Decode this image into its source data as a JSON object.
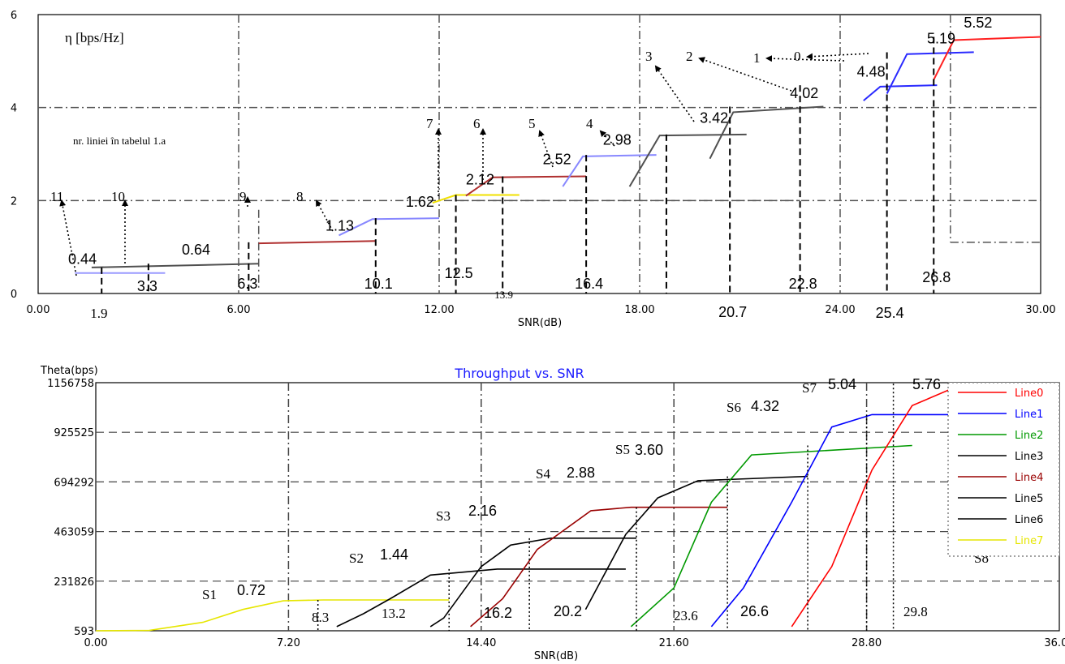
{
  "chart_data": [
    {
      "type": "line",
      "ylabel": "η [bps/Hz]",
      "xlabel": "SNR(dB)",
      "xlim": [
        0,
        30
      ],
      "ylim": [
        0,
        6
      ],
      "x_ticks": [
        "0.00",
        "6.00",
        "12.00",
        "18.00",
        "24.00",
        "30.00"
      ],
      "y_ticks": [
        "0",
        "2",
        "4",
        "6"
      ],
      "note": "nr. liniei în tabelul 1.a",
      "colors": {
        "gray": "#606060",
        "blue": "#8080ff",
        "red": "#b03030",
        "yellow": "#f0e000",
        "vivid_red": "#ff2020",
        "vivid_blue": "#2a2aff"
      },
      "series": [
        {
          "values_x": [
            1.1,
            3.8
          ],
          "values_y": [
            0.44,
            0.44
          ],
          "color": "#9a9aff"
        },
        {
          "values_x": [
            1.6,
            6.6
          ],
          "values_y": [
            0.56,
            0.64
          ],
          "color": "#505050"
        },
        {
          "values_x": [
            6.6,
            10.1
          ],
          "values_y": [
            1.08,
            1.13
          ],
          "color": "#b03030"
        },
        {
          "values_x": [
            9.0,
            10.0,
            12.0
          ],
          "values_y": [
            1.25,
            1.6,
            1.62
          ],
          "color": "#8888ff"
        },
        {
          "values_x": [
            11.8,
            12.5,
            14.4
          ],
          "values_y": [
            1.95,
            2.12,
            2.12
          ],
          "color": "#f0e000"
        },
        {
          "values_x": [
            12.8,
            13.6,
            16.4
          ],
          "values_y": [
            2.1,
            2.5,
            2.52
          ],
          "color": "#b03030"
        },
        {
          "values_x": [
            15.7,
            16.3,
            18.5
          ],
          "values_y": [
            2.3,
            2.95,
            2.98
          ],
          "color": "#8888ff"
        },
        {
          "values_x": [
            17.7,
            18.6,
            21.2
          ],
          "values_y": [
            2.3,
            3.4,
            3.42
          ],
          "color": "#505050"
        },
        {
          "values_x": [
            20.1,
            20.8,
            23.5
          ],
          "values_y": [
            2.9,
            3.9,
            4.02
          ],
          "color": "#505050"
        },
        {
          "values_x": [
            24.7,
            25.2,
            26.9
          ],
          "values_y": [
            4.15,
            4.45,
            4.48
          ],
          "color": "#2a2aff"
        },
        {
          "values_x": [
            25.4,
            26.0,
            28.0
          ],
          "values_y": [
            4.3,
            5.15,
            5.19
          ],
          "color": "#2a2aff"
        },
        {
          "values_x": [
            26.8,
            27.4,
            30.0
          ],
          "values_y": [
            4.6,
            5.45,
            5.52
          ],
          "color": "#ff2020"
        }
      ],
      "efficiency_labels": [
        {
          "text": "0.44",
          "x": 0.9,
          "y": 0.64
        },
        {
          "text": "0.64",
          "x": 4.3,
          "y": 0.84
        },
        {
          "text": "1.13",
          "x": 8.6,
          "y": 1.35
        },
        {
          "text": "1.62",
          "x": 11.0,
          "y": 1.87
        },
        {
          "text": "2.12",
          "x": 12.8,
          "y": 2.35
        },
        {
          "text": "2.52",
          "x": 15.1,
          "y": 2.78
        },
        {
          "text": "2.98",
          "x": 16.9,
          "y": 3.2
        },
        {
          "text": "3.42",
          "x": 19.8,
          "y": 3.67
        },
        {
          "text": "4.02",
          "x": 22.5,
          "y": 4.2
        },
        {
          "text": "4.48",
          "x": 24.5,
          "y": 4.67
        },
        {
          "text": "5.19",
          "x": 26.6,
          "y": 5.38
        },
        {
          "text": "5.52",
          "x": 27.7,
          "y": 5.72
        }
      ],
      "threshold_labels": [
        "1.9",
        "3.3",
        "6.3",
        "10.1",
        "12.5",
        "13.9",
        "16.4",
        "20.7",
        "22.8",
        "25.4",
        "26.8"
      ],
      "line_numbers": [
        "0",
        "1",
        "2",
        "3",
        "4",
        "5",
        "6",
        "7",
        "8",
        "9",
        "10",
        "11"
      ]
    },
    {
      "type": "line",
      "title": "Throughput vs. SNR",
      "ylabel": "Theta(bps)",
      "xlabel": "SNR(dB)",
      "xlim": [
        0,
        36
      ],
      "ylim": [
        593,
        1156758
      ],
      "x_ticks": [
        "0.00",
        "7.20",
        "14.40",
        "21.60",
        "28.80",
        "36.00"
      ],
      "y_ticks": [
        "593",
        "231826",
        "463059",
        "694292",
        "925525",
        "1156758"
      ],
      "legend": [
        "Line0",
        "Line1",
        "Line2",
        "Line3",
        "Line4",
        "Line5",
        "Line6",
        "Line7"
      ],
      "legend_colors": [
        "#ff0000",
        "#0000ff",
        "#009900",
        "#000000",
        "#990000",
        "#000000",
        "#000000",
        "#e6e600"
      ],
      "series": [
        {
          "name": "Line7",
          "x": [
            0.0,
            2.0,
            4.0,
            5.5,
            7.0,
            8.5,
            12.0,
            13.2
          ],
          "y": [
            593,
            2000,
            40000,
            100000,
            140000,
            144000,
            144000,
            144000
          ]
        },
        {
          "name": "Line6",
          "x": [
            9.0,
            10.0,
            11.0,
            12.5,
            15.0,
            16.2,
            19.8
          ],
          "y": [
            20000,
            80000,
            150000,
            260000,
            288000,
            288000,
            288000
          ]
        },
        {
          "name": "Line5",
          "x": [
            12.5,
            13.0,
            14.4,
            15.5,
            17.0,
            19.5,
            20.2
          ],
          "y": [
            20000,
            60000,
            300000,
            400000,
            432000,
            432000,
            432000
          ]
        },
        {
          "name": "Line4",
          "x": [
            14.0,
            15.2,
            16.5,
            18.5,
            20.0,
            23.6
          ],
          "y": [
            20000,
            150000,
            380000,
            560000,
            576000,
            576000
          ]
        },
        {
          "name": "Line3",
          "x": [
            18.3,
            19.8,
            21.0,
            22.5,
            26.6
          ],
          "y": [
            100000,
            450000,
            620000,
            700000,
            720000
          ]
        },
        {
          "name": "Line2",
          "x": [
            20.0,
            21.6,
            23.0,
            24.5,
            30.5
          ],
          "y": [
            20000,
            200000,
            600000,
            820000,
            864000
          ]
        },
        {
          "name": "Line1",
          "x": [
            23.0,
            24.2,
            26.0,
            27.5,
            29.0,
            33.0
          ],
          "y": [
            20000,
            200000,
            600000,
            950000,
            1008000,
            1008000
          ]
        },
        {
          "name": "Line0",
          "x": [
            26.0,
            27.5,
            29.0,
            30.5,
            32.0,
            34.0
          ],
          "y": [
            20000,
            300000,
            750000,
            1050000,
            1130000,
            1152000
          ]
        }
      ],
      "stage_labels": [
        "S1",
        "S2",
        "S3",
        "S4",
        "S5",
        "S6",
        "S7",
        "S8"
      ],
      "efficiency_labels": [
        "0.72",
        "1.44",
        "2.16",
        "2.88",
        "3.60",
        "4.32",
        "5.04",
        "5.76"
      ],
      "threshold_labels": [
        "8.3",
        "13.2",
        "16.2",
        "20.2",
        "23.6",
        "26.6",
        "29.8"
      ]
    }
  ]
}
